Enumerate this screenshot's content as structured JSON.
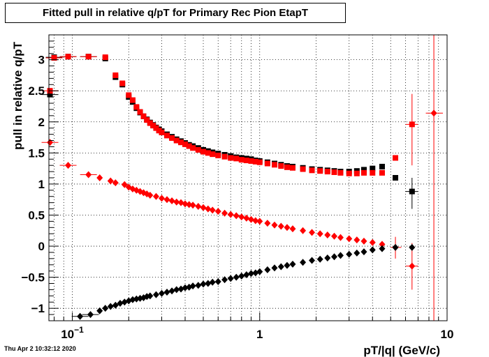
{
  "timestamp": "Thu Apr  2 10:32:12 2020",
  "chart_data": {
    "type": "scatter",
    "title": "Fitted pull in relative q/pT for Primary Rec Pion EtapT",
    "xlabel": "pT/|q| (GeV/c)",
    "ylabel": "pull in relative q/pT",
    "xscale": "log",
    "xlim": [
      0.075,
      10
    ],
    "ylim": [
      -1.2,
      3.4
    ],
    "grid": true,
    "x_tick_labels": [
      {
        "value": 0.1,
        "label": "10",
        "sup": "−1"
      },
      {
        "value": 1,
        "label": "1",
        "sup": ""
      },
      {
        "value": 10,
        "label": "10",
        "sup": ""
      }
    ],
    "y_ticks": [
      -1,
      -0.5,
      0,
      0.5,
      1,
      1.5,
      2,
      2.5,
      3
    ],
    "y_tick_labels": [
      "−1",
      "−0.5",
      "0",
      "0.5",
      "1",
      "1.5",
      "2",
      "2.5",
      "3"
    ],
    "colors": {
      "black": "#000000",
      "red": "#ff0000"
    },
    "series": [
      {
        "color": "black",
        "marker": "square",
        "points": [
          [
            0.076,
            2.44
          ],
          [
            0.08,
            3.04
          ],
          [
            0.095,
            3.05
          ],
          [
            0.122,
            3.05
          ],
          [
            0.15,
            3.02
          ],
          [
            0.17,
            2.72
          ],
          [
            0.185,
            2.6
          ],
          [
            0.2,
            2.4
          ],
          [
            0.21,
            2.32
          ],
          [
            0.22,
            2.22
          ],
          [
            0.23,
            2.15
          ],
          [
            0.24,
            2.09
          ],
          [
            0.25,
            2.04
          ],
          [
            0.26,
            1.99
          ],
          [
            0.27,
            1.95
          ],
          [
            0.28,
            1.91
          ],
          [
            0.29,
            1.88
          ],
          [
            0.3,
            1.85
          ],
          [
            0.32,
            1.8
          ],
          [
            0.34,
            1.76
          ],
          [
            0.36,
            1.72
          ],
          [
            0.38,
            1.69
          ],
          [
            0.4,
            1.66
          ],
          [
            0.42,
            1.63
          ],
          [
            0.44,
            1.61
          ],
          [
            0.47,
            1.58
          ],
          [
            0.5,
            1.55
          ],
          [
            0.53,
            1.53
          ],
          [
            0.56,
            1.51
          ],
          [
            0.6,
            1.49
          ],
          [
            0.65,
            1.47
          ],
          [
            0.7,
            1.45
          ],
          [
            0.75,
            1.43
          ],
          [
            0.8,
            1.42
          ],
          [
            0.85,
            1.41
          ],
          [
            0.9,
            1.4
          ],
          [
            0.95,
            1.38
          ],
          [
            1.0,
            1.37
          ],
          [
            1.1,
            1.35
          ],
          [
            1.2,
            1.33
          ],
          [
            1.3,
            1.31
          ],
          [
            1.4,
            1.29
          ],
          [
            1.5,
            1.28
          ],
          [
            1.7,
            1.26
          ],
          [
            1.9,
            1.24
          ],
          [
            2.1,
            1.23
          ],
          [
            2.3,
            1.22
          ],
          [
            2.5,
            1.21
          ],
          [
            2.7,
            1.2
          ],
          [
            3.0,
            1.2
          ],
          [
            3.3,
            1.21
          ],
          [
            3.6,
            1.23
          ],
          [
            4.0,
            1.25
          ],
          [
            4.5,
            1.28
          ],
          [
            5.3,
            1.1
          ],
          [
            6.5,
            0.88
          ]
        ]
      },
      {
        "color": "red",
        "marker": "square",
        "points": [
          [
            0.076,
            2.5
          ],
          [
            0.08,
            3.03
          ],
          [
            0.095,
            3.05
          ],
          [
            0.122,
            3.05
          ],
          [
            0.15,
            3.04
          ],
          [
            0.17,
            2.75
          ],
          [
            0.185,
            2.62
          ],
          [
            0.2,
            2.43
          ],
          [
            0.21,
            2.35
          ],
          [
            0.22,
            2.24
          ],
          [
            0.23,
            2.16
          ],
          [
            0.24,
            2.09
          ],
          [
            0.25,
            2.03
          ],
          [
            0.26,
            1.98
          ],
          [
            0.27,
            1.94
          ],
          [
            0.28,
            1.9
          ],
          [
            0.29,
            1.86
          ],
          [
            0.3,
            1.83
          ],
          [
            0.32,
            1.78
          ],
          [
            0.34,
            1.74
          ],
          [
            0.36,
            1.7
          ],
          [
            0.38,
            1.67
          ],
          [
            0.4,
            1.64
          ],
          [
            0.42,
            1.61
          ],
          [
            0.44,
            1.58
          ],
          [
            0.47,
            1.55
          ],
          [
            0.5,
            1.52
          ],
          [
            0.53,
            1.5
          ],
          [
            0.56,
            1.48
          ],
          [
            0.6,
            1.46
          ],
          [
            0.65,
            1.44
          ],
          [
            0.7,
            1.42
          ],
          [
            0.75,
            1.41
          ],
          [
            0.8,
            1.39
          ],
          [
            0.85,
            1.38
          ],
          [
            0.9,
            1.37
          ],
          [
            0.95,
            1.36
          ],
          [
            1.0,
            1.35
          ],
          [
            1.1,
            1.33
          ],
          [
            1.2,
            1.31
          ],
          [
            1.3,
            1.29
          ],
          [
            1.4,
            1.27
          ],
          [
            1.5,
            1.26
          ],
          [
            1.7,
            1.24
          ],
          [
            1.9,
            1.22
          ],
          [
            2.1,
            1.21
          ],
          [
            2.3,
            1.2
          ],
          [
            2.5,
            1.19
          ],
          [
            2.7,
            1.18
          ],
          [
            3.0,
            1.17
          ],
          [
            3.3,
            1.17
          ],
          [
            3.6,
            1.18
          ],
          [
            4.0,
            1.18
          ],
          [
            4.5,
            1.18
          ],
          [
            5.3,
            1.42
          ],
          [
            6.5,
            1.96
          ]
        ]
      },
      {
        "color": "red",
        "marker": "diamond",
        "points": [
          [
            0.076,
            1.67
          ],
          [
            0.095,
            1.3
          ],
          [
            0.122,
            1.15
          ],
          [
            0.14,
            1.1
          ],
          [
            0.16,
            1.05
          ],
          [
            0.17,
            1.02
          ],
          [
            0.19,
            0.99
          ],
          [
            0.2,
            0.95
          ],
          [
            0.21,
            0.92
          ],
          [
            0.22,
            0.9
          ],
          [
            0.23,
            0.88
          ],
          [
            0.24,
            0.86
          ],
          [
            0.25,
            0.84
          ],
          [
            0.26,
            0.82
          ],
          [
            0.28,
            0.8
          ],
          [
            0.3,
            0.77
          ],
          [
            0.32,
            0.75
          ],
          [
            0.34,
            0.73
          ],
          [
            0.36,
            0.71
          ],
          [
            0.38,
            0.7
          ],
          [
            0.4,
            0.68
          ],
          [
            0.42,
            0.67
          ],
          [
            0.44,
            0.66
          ],
          [
            0.47,
            0.64
          ],
          [
            0.5,
            0.62
          ],
          [
            0.53,
            0.6
          ],
          [
            0.56,
            0.58
          ],
          [
            0.6,
            0.56
          ],
          [
            0.65,
            0.53
          ],
          [
            0.7,
            0.51
          ],
          [
            0.75,
            0.49
          ],
          [
            0.8,
            0.47
          ],
          [
            0.85,
            0.45
          ],
          [
            0.9,
            0.43
          ],
          [
            0.95,
            0.41
          ],
          [
            1.0,
            0.4
          ],
          [
            1.1,
            0.37
          ],
          [
            1.2,
            0.34
          ],
          [
            1.3,
            0.32
          ],
          [
            1.4,
            0.3
          ],
          [
            1.5,
            0.28
          ],
          [
            1.7,
            0.25
          ],
          [
            1.9,
            0.22
          ],
          [
            2.1,
            0.2
          ],
          [
            2.3,
            0.18
          ],
          [
            2.5,
            0.16
          ],
          [
            2.7,
            0.14
          ],
          [
            3.0,
            0.12
          ],
          [
            3.3,
            0.1
          ],
          [
            3.6,
            0.08
          ],
          [
            4.0,
            0.06
          ],
          [
            4.5,
            0.03
          ],
          [
            5.3,
            -0.02
          ],
          [
            6.5,
            -0.32
          ],
          [
            8.5,
            2.14
          ]
        ]
      },
      {
        "color": "black",
        "marker": "diamond",
        "points": [
          [
            0.11,
            -1.13
          ],
          [
            0.125,
            -1.1
          ],
          [
            0.14,
            -1.04
          ],
          [
            0.15,
            -1.0
          ],
          [
            0.16,
            -0.97
          ],
          [
            0.17,
            -0.95
          ],
          [
            0.18,
            -0.92
          ],
          [
            0.19,
            -0.9
          ],
          [
            0.2,
            -0.88
          ],
          [
            0.21,
            -0.86
          ],
          [
            0.22,
            -0.85
          ],
          [
            0.23,
            -0.84
          ],
          [
            0.24,
            -0.83
          ],
          [
            0.25,
            -0.81
          ],
          [
            0.26,
            -0.8
          ],
          [
            0.28,
            -0.78
          ],
          [
            0.3,
            -0.76
          ],
          [
            0.32,
            -0.74
          ],
          [
            0.34,
            -0.72
          ],
          [
            0.36,
            -0.7
          ],
          [
            0.38,
            -0.69
          ],
          [
            0.4,
            -0.67
          ],
          [
            0.42,
            -0.66
          ],
          [
            0.44,
            -0.64
          ],
          [
            0.47,
            -0.63
          ],
          [
            0.5,
            -0.61
          ],
          [
            0.53,
            -0.6
          ],
          [
            0.56,
            -0.58
          ],
          [
            0.6,
            -0.57
          ],
          [
            0.65,
            -0.54
          ],
          [
            0.7,
            -0.52
          ],
          [
            0.75,
            -0.5
          ],
          [
            0.8,
            -0.48
          ],
          [
            0.85,
            -0.46
          ],
          [
            0.9,
            -0.44
          ],
          [
            0.95,
            -0.43
          ],
          [
            1.0,
            -0.41
          ],
          [
            1.1,
            -0.38
          ],
          [
            1.2,
            -0.35
          ],
          [
            1.3,
            -0.33
          ],
          [
            1.4,
            -0.31
          ],
          [
            1.5,
            -0.29
          ],
          [
            1.7,
            -0.26
          ],
          [
            1.9,
            -0.23
          ],
          [
            2.1,
            -0.21
          ],
          [
            2.3,
            -0.19
          ],
          [
            2.5,
            -0.17
          ],
          [
            2.7,
            -0.15
          ],
          [
            3.0,
            -0.13
          ],
          [
            3.3,
            -0.11
          ],
          [
            3.6,
            -0.09
          ],
          [
            4.0,
            -0.06
          ],
          [
            4.5,
            -0.04
          ],
          [
            5.3,
            -0.02
          ],
          [
            6.5,
            -0.02
          ]
        ]
      }
    ],
    "error_bars": [
      {
        "color": "red",
        "x": 6.5,
        "y": 1.96,
        "ylow": 1.3,
        "yhigh": 2.45,
        "xlow": 6.0,
        "xhigh": 7.0
      },
      {
        "color": "red",
        "x": 6.5,
        "y": -0.32,
        "ylow": -0.7,
        "yhigh": 0.05,
        "xlow": 6.0,
        "xhigh": 7.0
      },
      {
        "color": "red",
        "x": 8.5,
        "y": 2.14,
        "ylow": -1.2,
        "yhigh": 3.4,
        "xlow": 7.7,
        "xhigh": 9.5
      },
      {
        "color": "black",
        "x": 6.5,
        "y": 0.88,
        "ylow": 0.6,
        "yhigh": 1.1,
        "xlow": 6.0,
        "xhigh": 7.0
      },
      {
        "color": "red",
        "x": 5.3,
        "y": -0.02,
        "ylow": -0.2,
        "yhigh": 0.15,
        "xlow": 5.0,
        "xhigh": 5.7
      }
    ]
  }
}
